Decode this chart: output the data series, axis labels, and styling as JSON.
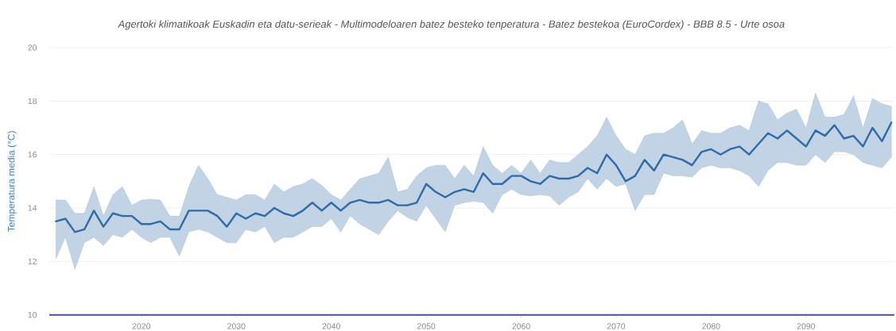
{
  "chart_data": {
    "type": "line",
    "title": "Agertoki klimatikoak Euskadin eta datu-serieak - Multimodeloaren batez besteko tenperatura - Batez bestekoa (EuroCordex) - BBB 8.5 - Urte osoa",
    "ylabel": "Temperatura media (°C)",
    "x": [
      2011,
      2012,
      2013,
      2014,
      2015,
      2016,
      2017,
      2018,
      2019,
      2020,
      2021,
      2022,
      2023,
      2024,
      2025,
      2026,
      2027,
      2028,
      2029,
      2030,
      2031,
      2032,
      2033,
      2034,
      2035,
      2036,
      2037,
      2038,
      2039,
      2040,
      2041,
      2042,
      2043,
      2044,
      2045,
      2046,
      2047,
      2048,
      2049,
      2050,
      2051,
      2052,
      2053,
      2054,
      2055,
      2056,
      2057,
      2058,
      2059,
      2060,
      2061,
      2062,
      2063,
      2064,
      2065,
      2066,
      2067,
      2068,
      2069,
      2070,
      2071,
      2072,
      2073,
      2074,
      2075,
      2076,
      2077,
      2078,
      2079,
      2080,
      2081,
      2082,
      2083,
      2084,
      2085,
      2086,
      2087,
      2088,
      2089,
      2090,
      2091,
      2092,
      2093,
      2094,
      2095,
      2096,
      2097,
      2098,
      2099
    ],
    "series": [
      {
        "color": "#2f6ba8",
        "values": [
          13.5,
          13.6,
          13.1,
          13.2,
          13.9,
          13.3,
          13.8,
          13.7,
          13.7,
          13.4,
          13.4,
          13.5,
          13.2,
          13.2,
          13.9,
          13.9,
          13.9,
          13.7,
          13.3,
          13.8,
          13.6,
          13.8,
          13.7,
          14.0,
          13.8,
          13.7,
          13.9,
          14.2,
          13.9,
          14.2,
          13.9,
          14.2,
          14.3,
          14.2,
          14.2,
          14.3,
          14.1,
          14.1,
          14.2,
          14.9,
          14.6,
          14.4,
          14.6,
          14.7,
          14.6,
          15.3,
          14.9,
          14.9,
          15.2,
          15.2,
          15.0,
          14.9,
          15.2,
          15.1,
          15.1,
          15.2,
          15.5,
          15.3,
          16.0,
          15.6,
          15.0,
          15.2,
          15.8,
          15.4,
          16.0,
          15.9,
          15.8,
          15.6,
          16.1,
          16.2,
          16.0,
          16.2,
          16.3,
          16.0,
          16.4,
          16.8,
          16.6,
          16.9,
          16.6,
          16.3,
          16.9,
          16.7,
          17.1,
          16.6,
          16.7,
          16.3,
          17.0,
          16.5,
          17.2
        ],
        "upper": [
          14.3,
          14.3,
          13.8,
          13.8,
          14.8,
          13.7,
          14.5,
          14.8,
          14.1,
          14.3,
          14.33,
          14.3,
          13.7,
          13.7,
          14.8,
          15.6,
          15.1,
          14.5,
          14.4,
          14.3,
          14.5,
          14.5,
          14.3,
          14.9,
          14.6,
          14.8,
          14.9,
          15.1,
          14.85,
          14.5,
          14.3,
          14.7,
          15.1,
          15.2,
          15.3,
          15.9,
          14.6,
          14.7,
          15.2,
          15.5,
          15.6,
          15.6,
          15.1,
          15.6,
          15.2,
          16.3,
          15.6,
          15.3,
          15.6,
          15.3,
          15.8,
          15.3,
          15.8,
          15.7,
          15.7,
          16.0,
          16.3,
          16.7,
          17.4,
          16.7,
          16.2,
          16.0,
          16.7,
          16.8,
          16.8,
          17.0,
          17.3,
          16.4,
          16.9,
          16.8,
          16.8,
          17.0,
          17.1,
          16.9,
          18.0,
          17.9,
          17.3,
          17.55,
          17.7,
          17.0,
          18.3,
          17.4,
          17.4,
          17.5,
          18.2,
          17.0,
          18.1,
          17.9,
          17.8
        ],
        "lower": [
          12.1,
          12.9,
          11.7,
          12.7,
          12.9,
          12.6,
          13.0,
          12.9,
          13.2,
          12.9,
          12.7,
          12.9,
          12.9,
          12.2,
          13.1,
          13.2,
          13.1,
          12.9,
          12.7,
          12.7,
          13.2,
          13.1,
          13.3,
          12.7,
          12.9,
          12.9,
          13.1,
          13.3,
          13.3,
          13.6,
          13.1,
          13.7,
          13.4,
          13.2,
          13.0,
          13.5,
          13.9,
          13.65,
          13.5,
          14.1,
          13.6,
          13.1,
          14.1,
          14.2,
          14.25,
          14.2,
          13.8,
          14.5,
          14.7,
          14.5,
          14.45,
          14.5,
          14.45,
          14.1,
          14.4,
          14.6,
          15.1,
          14.7,
          15.1,
          14.8,
          14.9,
          13.9,
          14.5,
          14.5,
          15.3,
          15.2,
          15.2,
          15.15,
          15.5,
          15.6,
          15.5,
          15.5,
          15.4,
          15.2,
          14.8,
          15.4,
          15.7,
          15.7,
          15.6,
          15.6,
          16.0,
          15.7,
          16.1,
          16.1,
          16.0,
          15.7,
          15.6,
          15.5,
          15.9
        ]
      }
    ],
    "xlim": [
      2010.3,
      2099.3
    ],
    "ylim": [
      10,
      20
    ],
    "xticks": [
      2020,
      2030,
      2040,
      2050,
      2060,
      2070,
      2080,
      2090
    ],
    "yticks": [
      10,
      12,
      14,
      16,
      18,
      20
    ],
    "grid": "y"
  }
}
